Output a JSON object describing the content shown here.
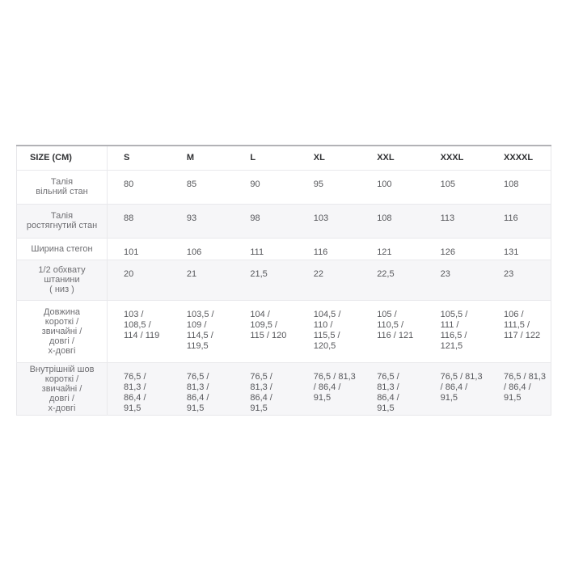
{
  "table": {
    "header": {
      "corner_label": "SIZE (CM)",
      "sizes": [
        "S",
        "M",
        "L",
        "XL",
        "XXL",
        "XXXL",
        "XXXXL"
      ]
    },
    "rows": [
      {
        "label_lines": [
          "Талія",
          "вільний стан"
        ],
        "values": [
          [
            "80"
          ],
          [
            "85"
          ],
          [
            "90"
          ],
          [
            "95"
          ],
          [
            "100"
          ],
          [
            "105"
          ],
          [
            "108"
          ]
        ]
      },
      {
        "label_lines": [
          "Талія",
          "ростягнутий стан"
        ],
        "values": [
          [
            "88"
          ],
          [
            "93"
          ],
          [
            "98"
          ],
          [
            "103"
          ],
          [
            "108"
          ],
          [
            "113"
          ],
          [
            "116"
          ]
        ]
      },
      {
        "label_lines": [
          "Ширина стегон"
        ],
        "values": [
          [
            "101"
          ],
          [
            "106"
          ],
          [
            "111"
          ],
          [
            "116"
          ],
          [
            "121"
          ],
          [
            "126"
          ],
          [
            "131"
          ]
        ]
      },
      {
        "label_lines": [
          "1/2 обхвату штанини",
          "( низ )"
        ],
        "values": [
          [
            "20"
          ],
          [
            "21"
          ],
          [
            "21,5"
          ],
          [
            "22"
          ],
          [
            "22,5"
          ],
          [
            "23"
          ],
          [
            "23"
          ]
        ]
      },
      {
        "label_lines": [
          "Довжина",
          "короткі /",
          "звичайні /",
          "довгі /",
          "х-довгі"
        ],
        "values": [
          [
            "103 /",
            "108,5 /",
            "114 / 119"
          ],
          [
            "103,5 /",
            "109 /",
            "114,5 /",
            "119,5"
          ],
          [
            "104 /",
            "109,5 /",
            "115 / 120"
          ],
          [
            "104,5 /",
            "110 /",
            "115,5 /",
            "120,5"
          ],
          [
            "105 /",
            "110,5 /",
            "116 / 121"
          ],
          [
            "105,5 /",
            "111 /",
            "116,5 /",
            "121,5"
          ],
          [
            "106 /",
            "111,5 /",
            "117 / 122"
          ]
        ]
      },
      {
        "label_lines": [
          "Внутрішній шов",
          "короткі /",
          "звичайні /",
          "довгі /",
          "х-довгі"
        ],
        "values": [
          [
            "76,5 /",
            "81,3 /",
            "86,4 /",
            "91,5"
          ],
          [
            "76,5 /",
            "81,3 /",
            "86,4 /",
            "91,5"
          ],
          [
            "76,5 /",
            "81,3 /",
            "86,4 /",
            "91,5"
          ],
          [
            "76,5 / 81,3",
            "/ 86,4 /",
            "91,5"
          ],
          [
            "76,5 /",
            "81,3 /",
            "86,4 /",
            "91,5"
          ],
          [
            "76,5 / 81,3",
            "/ 86,4 /",
            "91,5"
          ],
          [
            "76,5 / 81,3",
            "/ 86,4 /",
            "91,5"
          ]
        ]
      }
    ],
    "colors": {
      "stripe_bg": "#f6f6f8",
      "top_border": "#b2b2b6",
      "inner_border": "#e9e9ec",
      "header_text": "#2f3033",
      "label_text": "#6e6e72",
      "value_text": "#56575b"
    }
  }
}
